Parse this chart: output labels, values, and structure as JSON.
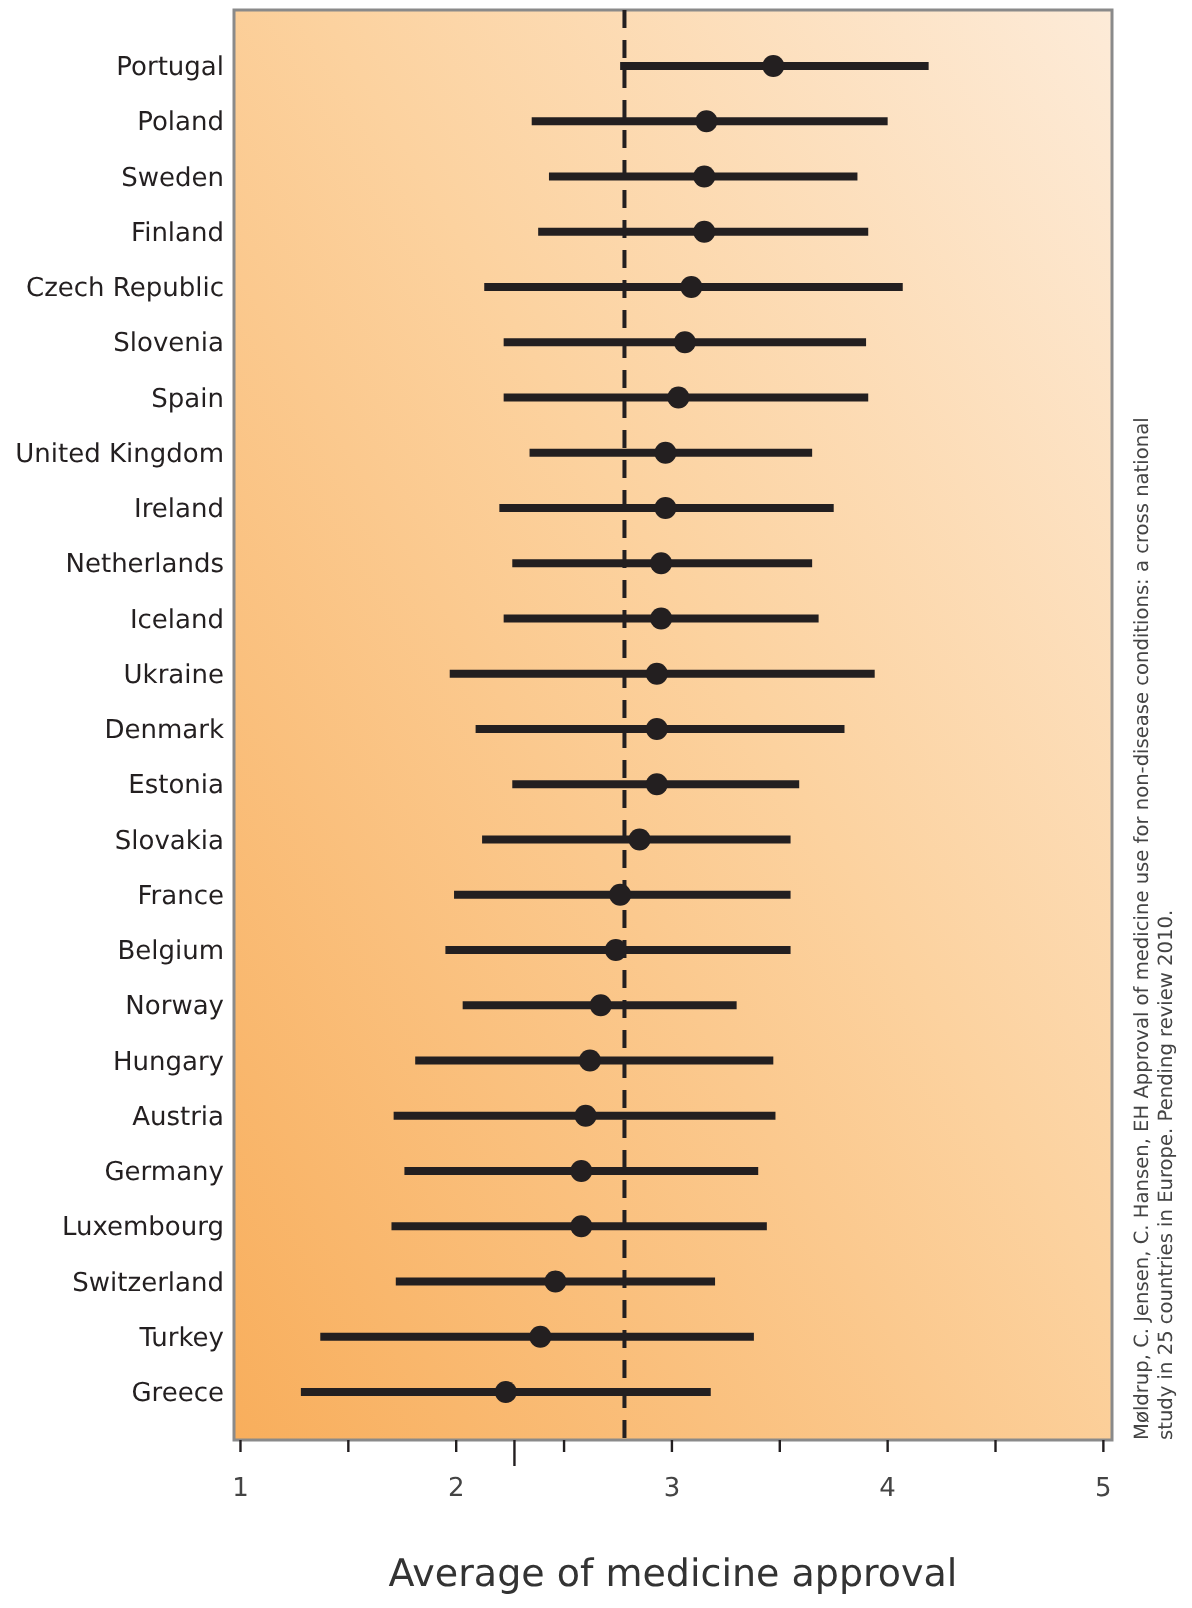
{
  "chart_data": {
    "type": "scatter",
    "orientation": "horizontal",
    "xlabel": "Average of medicine approval",
    "categories": [
      "Portugal",
      "Poland",
      "Sweden",
      "Finland",
      "Czech Republic",
      "Slovenia",
      "Spain",
      "United Kingdom",
      "Ireland",
      "Netherlands",
      "Iceland",
      "Ukraine",
      "Denmark",
      "Estonia",
      "Slovakia",
      "France",
      "Belgium",
      "Norway",
      "Hungary",
      "Austria",
      "Germany",
      "Luxembourg",
      "Switzerland",
      "Turkey",
      "Greece"
    ],
    "values": [
      3.47,
      3.16,
      3.15,
      3.15,
      3.09,
      3.06,
      3.03,
      2.97,
      2.97,
      2.95,
      2.95,
      2.93,
      2.93,
      2.93,
      2.85,
      2.76,
      2.74,
      2.67,
      2.62,
      2.6,
      2.58,
      2.58,
      2.46,
      2.39,
      2.23
    ],
    "errors": [
      [
        2.76,
        4.19
      ],
      [
        2.35,
        4.0
      ],
      [
        2.43,
        3.86
      ],
      [
        2.38,
        3.91
      ],
      [
        2.13,
        4.07
      ],
      [
        2.22,
        3.9
      ],
      [
        2.22,
        3.91
      ],
      [
        2.34,
        3.65
      ],
      [
        2.2,
        3.75
      ],
      [
        2.26,
        3.65
      ],
      [
        2.22,
        3.68
      ],
      [
        1.97,
        3.94
      ],
      [
        2.09,
        3.8
      ],
      [
        2.26,
        3.59
      ],
      [
        2.12,
        3.55
      ],
      [
        1.99,
        3.55
      ],
      [
        1.95,
        3.55
      ],
      [
        2.03,
        3.3
      ],
      [
        1.81,
        3.47
      ],
      [
        1.71,
        3.48
      ],
      [
        1.76,
        3.4
      ],
      [
        1.7,
        3.44
      ],
      [
        1.72,
        3.2
      ],
      [
        1.37,
        3.38
      ],
      [
        1.28,
        3.18
      ]
    ],
    "color": "#231f20",
    "marker": "circle",
    "xlim": [
      0.97,
      5.04
    ],
    "xticks": [
      1,
      {
        "value": 1.5,
        "label": null
      },
      2,
      {
        "value": 2.27,
        "label": null
      },
      {
        "value": 2.5,
        "label": null
      },
      3,
      {
        "value": 3.5,
        "label": null
      },
      4,
      {
        "value": 4.5,
        "label": null
      },
      5
    ],
    "ref_lines": [
      {
        "axis": "x",
        "value": 2.78,
        "line_style": "dashed",
        "color": "#231f20"
      }
    ],
    "grid": false,
    "annotations": [
      "Møldrup, C. Jensen, C. Hansen, EH Approval of medicine use for non-disease conditions: a cross national study in 25 countries in Europe. Pending review 2010."
    ]
  }
}
